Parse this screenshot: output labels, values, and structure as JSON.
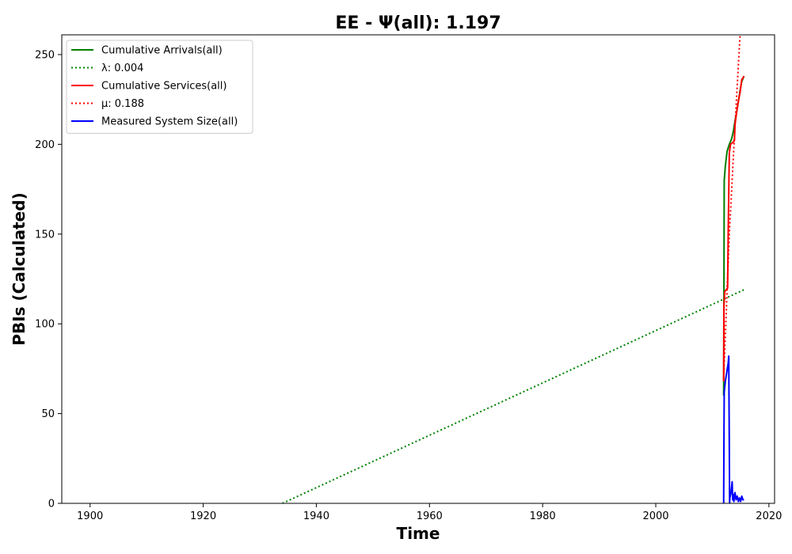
{
  "chart_data": {
    "type": "line",
    "title": "EE -  Ψ(all): 1.197",
    "xlabel": "Time",
    "ylabel": "PBIs (Calculated)",
    "xlim": [
      1895,
      2021
    ],
    "ylim": [
      0,
      261
    ],
    "xticks": [
      1900,
      1920,
      1940,
      1960,
      1980,
      2000,
      2020
    ],
    "yticks": [
      0,
      50,
      100,
      150,
      200,
      250
    ],
    "grid": false,
    "legend_position": "top-left",
    "series": [
      {
        "name": "Cumulative Arrivals(all)",
        "color": "#008000",
        "style": "solid",
        "x": [
          2012.0,
          2012.1,
          2012.3,
          2012.6,
          2013.0,
          2013.4,
          2013.7,
          2014.0,
          2014.3,
          2014.6,
          2014.9,
          2015.2,
          2015.6
        ],
        "y": [
          60,
          180,
          188,
          196,
          200,
          203,
          207,
          213,
          218,
          224,
          230,
          235,
          238
        ]
      },
      {
        "name": "λ: 0.004",
        "color": "#008000",
        "style": "dotted",
        "x": [
          1934.0,
          2015.6
        ],
        "y": [
          0,
          119
        ]
      },
      {
        "name": "Cumulative Services(all)",
        "color": "#ff0000",
        "style": "solid",
        "x": [
          2012.0,
          2012.05,
          2012.2,
          2012.7,
          2012.8,
          2013.0,
          2013.2,
          2013.6,
          2013.9,
          2014.0,
          2014.3,
          2014.6,
          2014.9,
          2015.2,
          2015.6
        ],
        "y": [
          68,
          110,
          118,
          120,
          150,
          195,
          200,
          201,
          202,
          211,
          218,
          224,
          229,
          236,
          238
        ]
      },
      {
        "name": "μ: 0.188",
        "color": "#ff0000",
        "style": "dotted",
        "x": [
          2012.0,
          2013.0,
          2014.0,
          2014.9
        ],
        "y": [
          70,
          150,
          210,
          261
        ]
      },
      {
        "name": "Measured System Size(all)",
        "color": "#0000ff",
        "style": "solid",
        "x": [
          2012.0,
          2012.05,
          2012.1,
          2012.2,
          2012.3,
          2012.5,
          2012.8,
          2012.9,
          2013.0,
          2013.05,
          2013.1,
          2013.3,
          2013.5,
          2013.6,
          2013.7,
          2013.8,
          2014.0,
          2014.2,
          2014.4,
          2014.6,
          2014.8,
          2015.0,
          2015.2,
          2015.4,
          2015.6
        ],
        "y": [
          0,
          35,
          62,
          65,
          68,
          72,
          78,
          82,
          30,
          0,
          3,
          6,
          12,
          2,
          5,
          1,
          6,
          2,
          4,
          1,
          3,
          1,
          4,
          2,
          2
        ]
      }
    ]
  }
}
